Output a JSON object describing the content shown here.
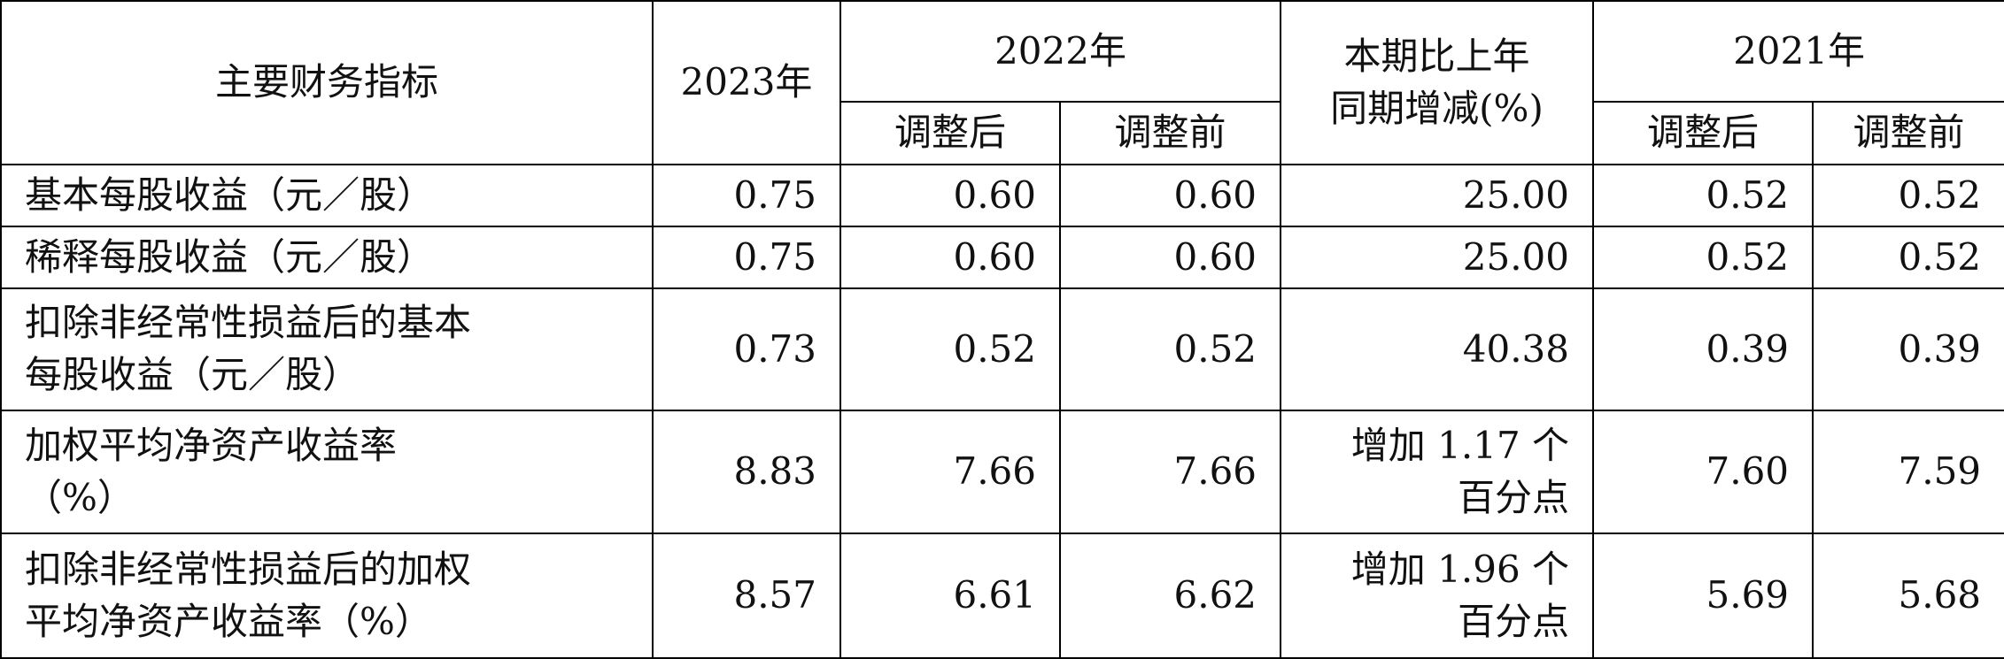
{
  "table": {
    "header": {
      "indicator": "主要财务指标",
      "y2023": "2023年",
      "y2022": "2022年",
      "change": [
        "本期比上年",
        "同期增减(%)"
      ],
      "y2021": "2021年",
      "sub": [
        "调整后",
        "调整前",
        "调整后",
        "调整前"
      ]
    },
    "rows": [
      {
        "label": [
          "基本每股收益（元／股）"
        ],
        "values": [
          "0.75",
          "0.60",
          "0.60",
          [
            "25.00"
          ],
          "0.52",
          "0.52"
        ]
      },
      {
        "label": [
          "稀释每股收益（元／股）"
        ],
        "values": [
          "0.75",
          "0.60",
          "0.60",
          [
            "25.00"
          ],
          "0.52",
          "0.52"
        ]
      },
      {
        "label": [
          "扣除非经常性损益后的基本",
          "每股收益（元／股）"
        ],
        "values": [
          "0.73",
          "0.52",
          "0.52",
          [
            "40.38"
          ],
          "0.39",
          "0.39"
        ]
      },
      {
        "label": [
          "加权平均净资产收益率",
          "（%）"
        ],
        "values": [
          "8.83",
          "7.66",
          "7.66",
          [
            "增加 1.17 个",
            "百分点"
          ],
          "7.60",
          "7.59"
        ]
      },
      {
        "label": [
          "扣除非经常性损益后的加权",
          "平均净资产收益率（%）"
        ],
        "values": [
          "8.57",
          "6.61",
          "6.62",
          [
            "增加 1.96 个",
            "百分点"
          ],
          "5.69",
          "5.68"
        ]
      }
    ]
  }
}
